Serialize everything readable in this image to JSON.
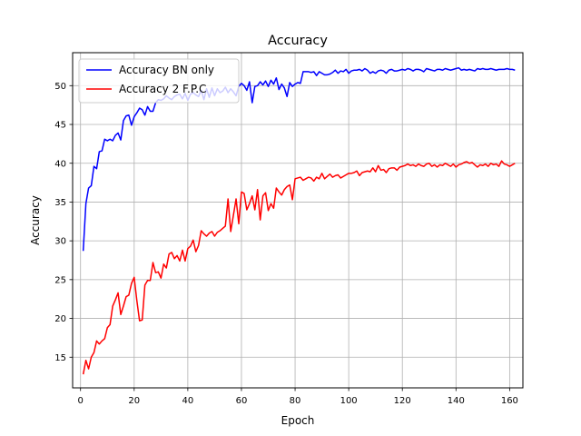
{
  "chart_data": {
    "type": "line",
    "title": "Accuracy",
    "xlabel": "Epoch",
    "ylabel": "Accuracy",
    "xlim": [
      -2.95,
      164.95
    ],
    "ylim": [
      11.05,
      54.25
    ],
    "xticks": [
      0,
      20,
      40,
      60,
      80,
      100,
      120,
      140,
      160
    ],
    "yticks": [
      15,
      20,
      25,
      30,
      35,
      40,
      45,
      50
    ],
    "grid": true,
    "legend": "upper-left",
    "x_start": 1,
    "x_step": 1,
    "series": [
      {
        "name": "Accuracy BN only",
        "color": "#0000ff",
        "values": [
          28.7,
          34.8,
          36.8,
          37.1,
          39.6,
          39.3,
          41.5,
          41.6,
          43.1,
          42.9,
          43.1,
          42.9,
          43.6,
          43.9,
          43.0,
          45.5,
          46.1,
          46.2,
          44.9,
          46.0,
          46.5,
          47.1,
          46.9,
          46.2,
          47.3,
          46.7,
          46.7,
          47.8,
          48.2,
          48.1,
          48.3,
          48.7,
          48.4,
          48.2,
          48.6,
          48.8,
          48.9,
          48.3,
          49.0,
          48.1,
          48.9,
          49.1,
          48.8,
          48.6,
          49.4,
          48.2,
          49.6,
          48.5,
          49.7,
          48.7,
          49.6,
          49.1,
          49.3,
          49.8,
          49.1,
          49.6,
          49.2,
          48.7,
          49.9,
          50.3,
          50.0,
          49.4,
          50.5,
          47.8,
          49.9,
          50.0,
          50.5,
          50.1,
          50.6,
          49.9,
          50.7,
          50.2,
          51.0,
          49.5,
          50.2,
          49.7,
          48.6,
          50.4,
          49.9,
          50.2,
          50.4,
          50.3,
          51.8,
          51.8,
          51.8,
          51.7,
          51.8,
          51.3,
          51.8,
          51.6,
          51.4,
          51.4,
          51.5,
          51.7,
          52.0,
          51.6,
          51.9,
          51.8,
          52.1,
          51.6,
          51.9,
          52.0,
          52.0,
          52.1,
          51.9,
          52.2,
          52.0,
          51.6,
          51.8,
          51.6,
          51.9,
          52.0,
          51.9,
          51.6,
          52.0,
          52.1,
          51.9,
          51.9,
          52.0,
          52.1,
          52.0,
          52.2,
          52.1,
          51.9,
          52.1,
          52.1,
          52.0,
          51.8,
          52.2,
          52.1,
          52.0,
          51.9,
          52.1,
          52.1,
          52.0,
          52.2,
          52.1,
          52.0,
          52.1,
          52.2,
          52.3,
          52.0,
          52.1,
          52.0,
          52.1,
          52.0,
          51.9,
          52.2,
          52.1,
          52.2,
          52.1,
          52.1,
          52.2,
          52.1,
          52.0,
          52.1,
          52.1,
          52.1,
          52.2,
          52.1,
          52.1,
          52.0
        ]
      },
      {
        "name": "Accuracy 2 F.P.C",
        "color": "#ff0000",
        "values": [
          12.8,
          14.6,
          13.5,
          15.0,
          15.6,
          17.1,
          16.7,
          17.1,
          17.4,
          18.8,
          19.2,
          21.6,
          22.4,
          23.3,
          20.5,
          21.6,
          22.8,
          23.0,
          24.5,
          25.3,
          22.3,
          19.7,
          19.8,
          24.3,
          24.9,
          24.9,
          27.2,
          25.9,
          26.0,
          25.2,
          27.0,
          26.5,
          28.3,
          28.5,
          27.7,
          28.1,
          27.4,
          28.8,
          27.4,
          29.0,
          29.3,
          30.1,
          28.6,
          29.4,
          31.3,
          30.9,
          30.6,
          31.0,
          31.2,
          30.6,
          31.1,
          31.3,
          31.6,
          31.9,
          35.4,
          31.2,
          33.3,
          35.4,
          32.2,
          36.3,
          36.1,
          34.0,
          34.8,
          35.8,
          34.0,
          36.6,
          32.7,
          35.8,
          36.2,
          33.9,
          34.8,
          34.2,
          36.8,
          36.3,
          35.9,
          36.6,
          37.0,
          37.2,
          35.3,
          38.0,
          38.1,
          38.2,
          37.8,
          38.0,
          38.2,
          38.1,
          37.7,
          38.2,
          38.0,
          38.7,
          38.0,
          38.3,
          38.6,
          38.2,
          38.4,
          38.5,
          38.1,
          38.3,
          38.5,
          38.7,
          38.7,
          38.8,
          39.0,
          38.4,
          38.8,
          38.9,
          39.0,
          38.9,
          39.4,
          38.9,
          39.7,
          39.1,
          39.2,
          38.8,
          39.3,
          39.4,
          39.4,
          39.1,
          39.5,
          39.6,
          39.7,
          39.9,
          39.7,
          39.8,
          39.6,
          39.9,
          39.7,
          39.6,
          39.9,
          40.0,
          39.6,
          39.8,
          39.5,
          39.8,
          39.7,
          40.0,
          39.8,
          39.6,
          39.9,
          39.5,
          39.8,
          39.9,
          40.1,
          40.2,
          40.0,
          40.1,
          39.8,
          39.5,
          39.8,
          39.7,
          39.9,
          39.6,
          40.0,
          39.8,
          39.9,
          39.6,
          40.3,
          39.9,
          39.8,
          39.6,
          39.8,
          40.0
        ]
      }
    ]
  }
}
